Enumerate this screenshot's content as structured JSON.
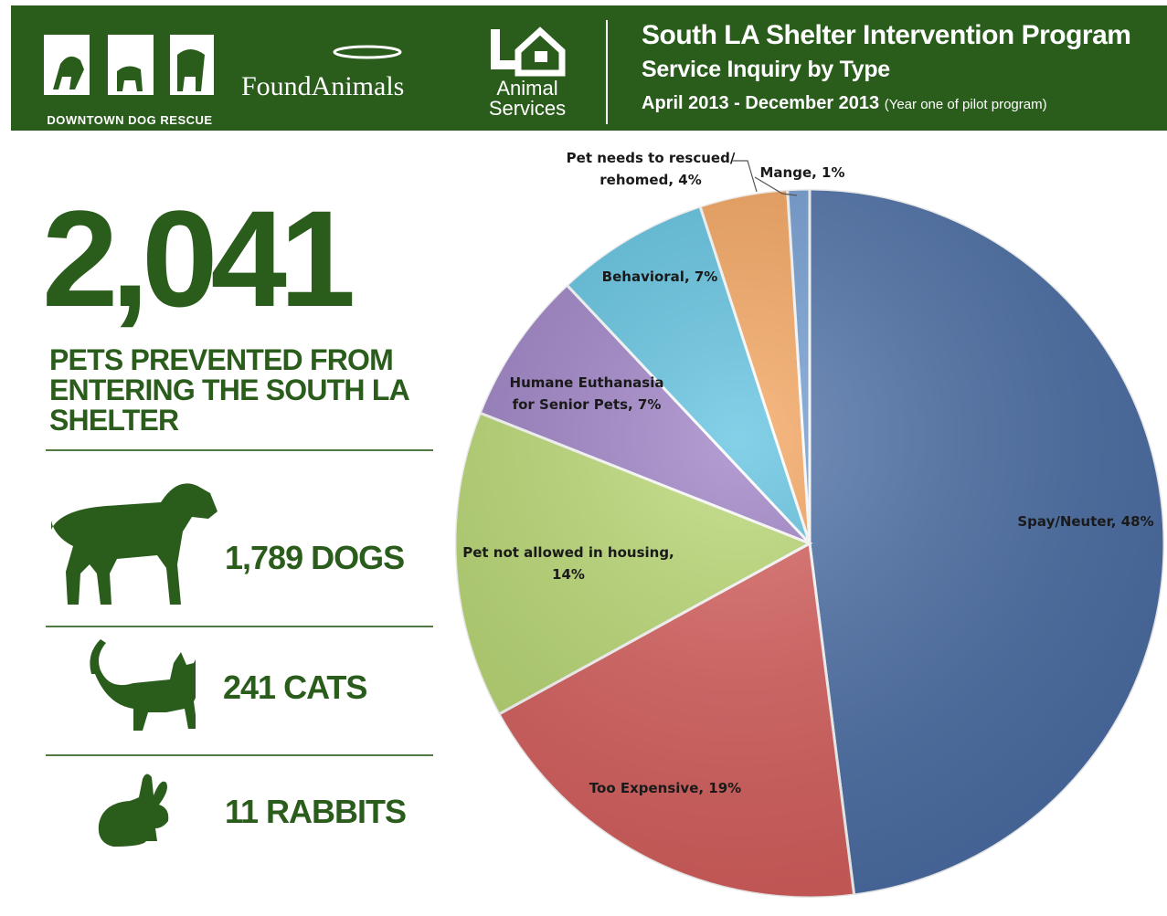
{
  "header": {
    "dcr_logo_text": "DCR",
    "dcr_subtitle": "DOWNTOWN DOG RESCUE",
    "found_animals": "FoundAnimals",
    "la_animal_line1": "Animal",
    "la_animal_line2": "Services",
    "title": "South LA Shelter Intervention Program",
    "subtitle": "Service Inquiry by Type",
    "dates": "April 2013 - December 2013",
    "dates_note": "(Year one of pilot program)"
  },
  "summary": {
    "total": "2,041",
    "caption": "PETS PREVENTED FROM ENTERING THE SOUTH LA SHELTER",
    "dogs": "1,789 DOGS",
    "cats": "241 CATS",
    "rabbits": "11 RABBITS"
  },
  "colors": {
    "brand_green": "#2a5c1c",
    "slices": [
      "#4a6ea6",
      "#d85e5c",
      "#b9d971",
      "#9b7ec4",
      "#5cc1e0",
      "#f5a35a",
      "#6f9bd1"
    ]
  },
  "chart_data": {
    "type": "pie",
    "start_angle_deg": 0,
    "direction": "clockwise",
    "slices": [
      {
        "label": "Spay/Neuter, 48%",
        "name": "Spay/Neuter",
        "value": 48
      },
      {
        "label": "Too Expensive, 19%",
        "name": "Too Expensive",
        "value": 19
      },
      {
        "label": "Pet not allowed in housing, 14%",
        "name": "Pet not allowed in housing",
        "value": 14
      },
      {
        "label": "Humane Euthanasia for Senior Pets, 7%",
        "name": "Humane Euthanasia for Senior Pets",
        "value": 7
      },
      {
        "label": "Behavioral, 7%",
        "name": "Behavioral",
        "value": 7
      },
      {
        "label": "Pet needs to rescued/ rehomed, 4%",
        "name": "Pet needs to rescued/ rehomed",
        "value": 4
      },
      {
        "label": "Mange, 1%",
        "name": "Mange",
        "value": 1
      }
    ]
  }
}
